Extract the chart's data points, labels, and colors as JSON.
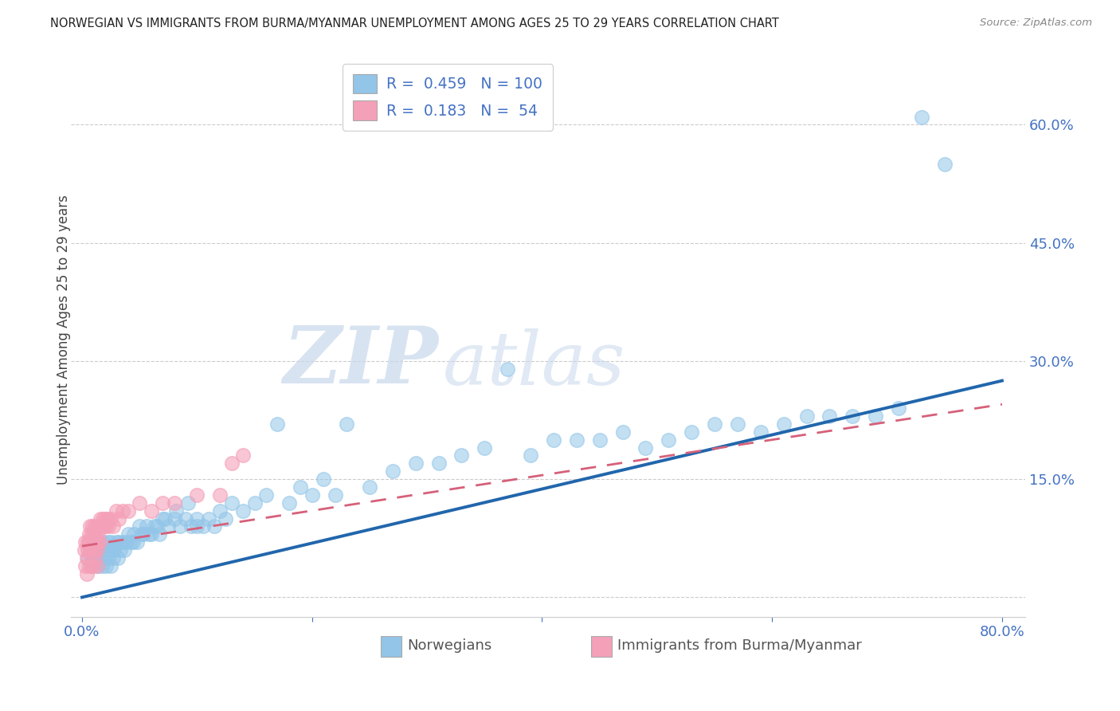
{
  "title": "NORWEGIAN VS IMMIGRANTS FROM BURMA/MYANMAR UNEMPLOYMENT AMONG AGES 25 TO 29 YEARS CORRELATION CHART",
  "source": "Source: ZipAtlas.com",
  "ylabel": "Unemployment Among Ages 25 to 29 years",
  "xlim": [
    -0.01,
    0.82
  ],
  "ylim": [
    -0.025,
    0.68
  ],
  "xticks": [
    0.0,
    0.2,
    0.4,
    0.6,
    0.8
  ],
  "xticklabels": [
    "0.0%",
    "",
    "",
    "",
    "80.0%"
  ],
  "yticks": [
    0.0,
    0.15,
    0.3,
    0.45,
    0.6
  ],
  "yticklabels_right": [
    "",
    "15.0%",
    "30.0%",
    "45.0%",
    "60.0%"
  ],
  "norwegians_R": 0.459,
  "norwegians_N": 100,
  "immigrants_R": 0.183,
  "immigrants_N": 54,
  "blue_color": "#92C5E8",
  "pink_color": "#F4A0B8",
  "blue_line_color": "#2166AC",
  "pink_line_color": "#D6607A",
  "legend_label_1": "Norwegians",
  "legend_label_2": "Immigrants from Burma/Myanmar",
  "watermark_ZIP": "ZIP",
  "watermark_atlas": "atlas",
  "tick_color": "#4472C4",
  "blue_trend_start_y": 0.0,
  "blue_trend_end_y": 0.275,
  "pink_trend_start_y": 0.065,
  "pink_trend_end_y": 0.245,
  "norwegians_x": [
    0.005,
    0.007,
    0.008,
    0.01,
    0.01,
    0.012,
    0.013,
    0.015,
    0.015,
    0.016,
    0.017,
    0.018,
    0.019,
    0.02,
    0.021,
    0.022,
    0.023,
    0.024,
    0.025,
    0.025,
    0.027,
    0.028,
    0.03,
    0.031,
    0.033,
    0.035,
    0.037,
    0.04,
    0.042,
    0.045,
    0.048,
    0.05,
    0.053,
    0.056,
    0.06,
    0.063,
    0.067,
    0.07,
    0.075,
    0.08,
    0.085,
    0.09,
    0.095,
    0.1,
    0.105,
    0.11,
    0.115,
    0.12,
    0.125,
    0.13,
    0.14,
    0.15,
    0.16,
    0.17,
    0.18,
    0.19,
    0.2,
    0.21,
    0.22,
    0.23,
    0.25,
    0.27,
    0.29,
    0.31,
    0.33,
    0.35,
    0.37,
    0.39,
    0.41,
    0.43,
    0.45,
    0.47,
    0.49,
    0.51,
    0.53,
    0.55,
    0.57,
    0.59,
    0.61,
    0.63,
    0.65,
    0.67,
    0.69,
    0.71,
    0.73,
    0.009,
    0.011,
    0.014,
    0.026,
    0.032,
    0.038,
    0.044,
    0.052,
    0.058,
    0.065,
    0.072,
    0.082,
    0.092,
    0.1,
    0.75
  ],
  "norwegians_y": [
    0.05,
    0.06,
    0.04,
    0.07,
    0.05,
    0.06,
    0.04,
    0.07,
    0.05,
    0.06,
    0.04,
    0.07,
    0.05,
    0.06,
    0.04,
    0.07,
    0.05,
    0.06,
    0.04,
    0.07,
    0.05,
    0.06,
    0.07,
    0.05,
    0.06,
    0.07,
    0.06,
    0.08,
    0.07,
    0.08,
    0.07,
    0.09,
    0.08,
    0.09,
    0.08,
    0.09,
    0.08,
    0.1,
    0.09,
    0.1,
    0.09,
    0.1,
    0.09,
    0.1,
    0.09,
    0.1,
    0.09,
    0.11,
    0.1,
    0.12,
    0.11,
    0.12,
    0.13,
    0.22,
    0.12,
    0.14,
    0.13,
    0.15,
    0.13,
    0.22,
    0.14,
    0.16,
    0.17,
    0.17,
    0.18,
    0.19,
    0.29,
    0.18,
    0.2,
    0.2,
    0.2,
    0.21,
    0.19,
    0.2,
    0.21,
    0.22,
    0.22,
    0.21,
    0.22,
    0.23,
    0.23,
    0.23,
    0.23,
    0.24,
    0.61,
    0.05,
    0.05,
    0.06,
    0.06,
    0.07,
    0.07,
    0.07,
    0.08,
    0.08,
    0.09,
    0.1,
    0.11,
    0.12,
    0.09,
    0.55
  ],
  "immigrants_x": [
    0.002,
    0.003,
    0.004,
    0.005,
    0.005,
    0.006,
    0.006,
    0.007,
    0.007,
    0.008,
    0.008,
    0.009,
    0.009,
    0.01,
    0.01,
    0.011,
    0.011,
    0.012,
    0.012,
    0.013,
    0.013,
    0.014,
    0.014,
    0.015,
    0.015,
    0.016,
    0.017,
    0.018,
    0.019,
    0.02,
    0.021,
    0.022,
    0.023,
    0.025,
    0.027,
    0.03,
    0.032,
    0.035,
    0.04,
    0.05,
    0.06,
    0.07,
    0.08,
    0.1,
    0.12,
    0.14,
    0.003,
    0.004,
    0.006,
    0.008,
    0.009,
    0.011,
    0.013,
    0.13
  ],
  "immigrants_y": [
    0.06,
    0.07,
    0.05,
    0.07,
    0.06,
    0.08,
    0.07,
    0.09,
    0.06,
    0.08,
    0.07,
    0.09,
    0.06,
    0.08,
    0.07,
    0.09,
    0.06,
    0.08,
    0.07,
    0.09,
    0.06,
    0.08,
    0.07,
    0.09,
    0.07,
    0.1,
    0.09,
    0.1,
    0.09,
    0.1,
    0.09,
    0.1,
    0.09,
    0.1,
    0.09,
    0.11,
    0.1,
    0.11,
    0.11,
    0.12,
    0.11,
    0.12,
    0.12,
    0.13,
    0.13,
    0.18,
    0.04,
    0.03,
    0.04,
    0.04,
    0.04,
    0.05,
    0.04,
    0.17
  ]
}
